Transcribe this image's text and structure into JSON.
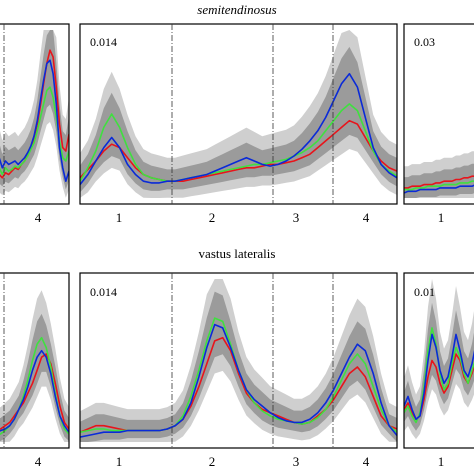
{
  "chart_data": {
    "type": "line",
    "x": [
      0,
      1,
      2,
      3,
      4,
      5,
      6,
      7,
      8,
      9,
      10,
      11,
      12,
      13,
      14,
      15,
      16,
      17,
      18,
      19,
      20,
      21,
      22,
      23,
      24,
      25,
      26,
      27,
      28,
      29,
      30,
      31,
      32,
      33,
      34,
      35,
      36,
      37,
      38,
      39,
      40
    ],
    "colors": {
      "red": "#e8141b",
      "green": "#3fe03f",
      "blue": "#0a2ad8",
      "band_light": "#cfcfcf",
      "band_dark": "#9b9b9b"
    },
    "rows": [
      {
        "title": "semitendinosus",
        "panels": [
          {
            "id": "st-left",
            "scale": "",
            "phase_labels": [
              "4"
            ],
            "ymax": 1.0,
            "red": [
              0.12,
              0.14,
              0.12,
              0.15,
              0.14,
              0.16,
              0.18,
              0.17,
              0.2,
              0.22,
              0.26,
              0.3,
              0.36,
              0.44,
              0.55,
              0.68,
              0.8,
              0.88,
              0.84,
              0.66,
              0.44,
              0.3,
              0.28,
              0.38
            ],
            "green": [
              0.16,
              0.18,
              0.14,
              0.18,
              0.16,
              0.17,
              0.19,
              0.18,
              0.2,
              0.22,
              0.25,
              0.29,
              0.33,
              0.4,
              0.48,
              0.56,
              0.64,
              0.66,
              0.6,
              0.48,
              0.34,
              0.24,
              0.22,
              0.28
            ],
            "blue": [
              0.2,
              0.24,
              0.18,
              0.22,
              0.2,
              0.21,
              0.22,
              0.2,
              0.22,
              0.24,
              0.27,
              0.31,
              0.37,
              0.46,
              0.58,
              0.7,
              0.8,
              0.82,
              0.74,
              0.56,
              0.3,
              0.18,
              0.1,
              0.16
            ]
          },
          {
            "id": "st-mid",
            "scale": "0.014",
            "phase_labels": [
              "1",
              "2",
              "3",
              "4"
            ],
            "ymax": 1.0,
            "red": [
              0.12,
              0.17,
              0.22,
              0.28,
              0.32,
              0.3,
              0.24,
              0.18,
              0.14,
              0.12,
              0.11,
              0.1,
              0.1,
              0.1,
              0.11,
              0.12,
              0.13,
              0.14,
              0.15,
              0.16,
              0.17,
              0.18,
              0.18,
              0.19,
              0.2,
              0.2,
              0.21,
              0.22,
              0.24,
              0.26,
              0.3,
              0.34,
              0.38,
              0.42,
              0.46,
              0.44,
              0.36,
              0.28,
              0.22,
              0.18,
              0.16
            ],
            "green": [
              0.1,
              0.18,
              0.28,
              0.42,
              0.5,
              0.42,
              0.3,
              0.2,
              0.14,
              0.12,
              0.11,
              0.1,
              0.1,
              0.11,
              0.12,
              0.13,
              0.14,
              0.15,
              0.16,
              0.17,
              0.18,
              0.19,
              0.2,
              0.2,
              0.21,
              0.22,
              0.23,
              0.25,
              0.27,
              0.3,
              0.34,
              0.4,
              0.46,
              0.52,
              0.56,
              0.52,
              0.4,
              0.28,
              0.2,
              0.16,
              0.13
            ],
            "blue": [
              0.08,
              0.14,
              0.22,
              0.3,
              0.36,
              0.3,
              0.2,
              0.14,
              0.1,
              0.09,
              0.09,
              0.1,
              0.1,
              0.11,
              0.12,
              0.13,
              0.14,
              0.16,
              0.18,
              0.2,
              0.22,
              0.24,
              0.22,
              0.2,
              0.19,
              0.2,
              0.22,
              0.25,
              0.29,
              0.34,
              0.4,
              0.48,
              0.58,
              0.68,
              0.74,
              0.66,
              0.48,
              0.3,
              0.2,
              0.15,
              0.12
            ]
          },
          {
            "id": "st-right",
            "scale": "0.03",
            "phase_labels": [
              "1"
            ],
            "ymax": 1.0,
            "red": [
              0.06,
              0.06,
              0.07,
              0.07,
              0.07,
              0.08,
              0.08,
              0.08,
              0.09,
              0.09,
              0.1,
              0.1,
              0.1,
              0.11,
              0.11,
              0.12,
              0.12,
              0.13,
              0.13,
              0.14
            ],
            "green": [
              0.05,
              0.05,
              0.05,
              0.06,
              0.06,
              0.06,
              0.07,
              0.07,
              0.07,
              0.07,
              0.08,
              0.08,
              0.08,
              0.08,
              0.09,
              0.09,
              0.09,
              0.1,
              0.1,
              0.1
            ],
            "blue": [
              0.03,
              0.04,
              0.04,
              0.04,
              0.05,
              0.05,
              0.05,
              0.05,
              0.05,
              0.06,
              0.06,
              0.06,
              0.06,
              0.06,
              0.07,
              0.07,
              0.07,
              0.07,
              0.08,
              0.08
            ]
          }
        ]
      },
      {
        "title": "vastus lateralis",
        "panels": [
          {
            "id": "vl-left",
            "scale": "",
            "phase_labels": [
              "4"
            ],
            "ymax": 1.0,
            "red": [
              0.08,
              0.08,
              0.1,
              0.12,
              0.16,
              0.2,
              0.24,
              0.3,
              0.36,
              0.44,
              0.52,
              0.54,
              0.48,
              0.36,
              0.22,
              0.12,
              0.08
            ],
            "green": [
              0.04,
              0.05,
              0.07,
              0.1,
              0.14,
              0.2,
              0.28,
              0.38,
              0.5,
              0.6,
              0.64,
              0.58,
              0.46,
              0.3,
              0.16,
              0.08,
              0.05
            ],
            "blue": [
              0.06,
              0.07,
              0.08,
              0.1,
              0.14,
              0.2,
              0.26,
              0.34,
              0.44,
              0.52,
              0.56,
              0.52,
              0.42,
              0.28,
              0.16,
              0.1,
              0.06
            ]
          },
          {
            "id": "vl-mid",
            "scale": "0.014",
            "phase_labels": [
              "1",
              "2",
              "3",
              "4"
            ],
            "ymax": 1.0,
            "red": [
              0.06,
              0.08,
              0.1,
              0.1,
              0.09,
              0.08,
              0.07,
              0.07,
              0.07,
              0.07,
              0.07,
              0.08,
              0.1,
              0.14,
              0.22,
              0.34,
              0.48,
              0.62,
              0.64,
              0.56,
              0.42,
              0.3,
              0.24,
              0.2,
              0.18,
              0.16,
              0.14,
              0.12,
              0.11,
              0.12,
              0.16,
              0.2,
              0.26,
              0.34,
              0.42,
              0.46,
              0.4,
              0.28,
              0.16,
              0.1,
              0.08
            ],
            "green": [
              0.06,
              0.07,
              0.08,
              0.08,
              0.07,
              0.07,
              0.07,
              0.07,
              0.07,
              0.07,
              0.07,
              0.08,
              0.1,
              0.16,
              0.28,
              0.44,
              0.62,
              0.76,
              0.74,
              0.6,
              0.44,
              0.32,
              0.24,
              0.19,
              0.16,
              0.14,
              0.13,
              0.12,
              0.11,
              0.12,
              0.15,
              0.2,
              0.28,
              0.38,
              0.48,
              0.54,
              0.48,
              0.34,
              0.2,
              0.1,
              0.06
            ],
            "blue": [
              0.03,
              0.04,
              0.05,
              0.06,
              0.06,
              0.06,
              0.07,
              0.07,
              0.07,
              0.07,
              0.07,
              0.08,
              0.1,
              0.14,
              0.24,
              0.4,
              0.58,
              0.72,
              0.7,
              0.58,
              0.44,
              0.32,
              0.26,
              0.22,
              0.18,
              0.15,
              0.13,
              0.12,
              0.12,
              0.14,
              0.18,
              0.24,
              0.32,
              0.42,
              0.52,
              0.6,
              0.56,
              0.42,
              0.24,
              0.1,
              0.04
            ]
          },
          {
            "id": "vl-right",
            "scale": "0.01",
            "phase_labels": [
              "1"
            ],
            "ymax": 1.0,
            "red": [
              0.2,
              0.24,
              0.18,
              0.14,
              0.16,
              0.26,
              0.4,
              0.5,
              0.46,
              0.36,
              0.3,
              0.34,
              0.44,
              0.54,
              0.5,
              0.4,
              0.36,
              0.42,
              0.5,
              0.54
            ],
            "green": [
              0.18,
              0.22,
              0.16,
              0.12,
              0.18,
              0.34,
              0.56,
              0.7,
              0.6,
              0.42,
              0.32,
              0.36,
              0.48,
              0.58,
              0.52,
              0.42,
              0.36,
              0.44,
              0.52,
              0.58
            ],
            "blue": [
              0.22,
              0.28,
              0.2,
              0.14,
              0.16,
              0.3,
              0.5,
              0.66,
              0.58,
              0.44,
              0.36,
              0.4,
              0.52,
              0.66,
              0.56,
              0.44,
              0.4,
              0.48,
              0.6,
              0.68
            ]
          }
        ]
      }
    ]
  }
}
